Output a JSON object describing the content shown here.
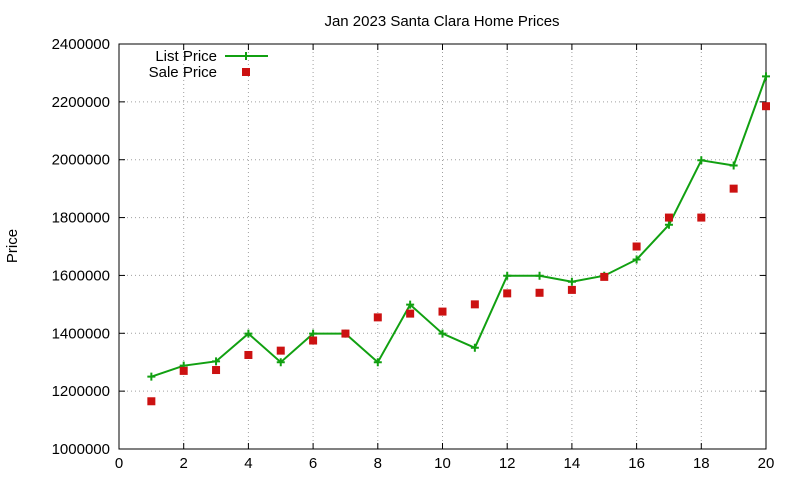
{
  "chart_data": {
    "type": "line",
    "title": "Jan 2023 Santa Clara Home Prices",
    "xlabel": "",
    "ylabel": "Price",
    "xlim": [
      0,
      20
    ],
    "ylim": [
      1000000,
      2400000
    ],
    "xticks": [
      0,
      2,
      4,
      6,
      8,
      10,
      12,
      14,
      16,
      18,
      20
    ],
    "yticks": [
      1000000,
      1200000,
      1400000,
      1600000,
      1800000,
      2000000,
      2200000,
      2400000
    ],
    "grid": true,
    "legend_position": "top-left",
    "series": [
      {
        "name": "List Price",
        "style": "linespoints",
        "color": "#11a011",
        "x": [
          1,
          2,
          3,
          4,
          5,
          6,
          7,
          8,
          9,
          10,
          11,
          12,
          13,
          14,
          15,
          16,
          17,
          18,
          19,
          20
        ],
        "values": [
          1250000,
          1288000,
          1303000,
          1399000,
          1300000,
          1399000,
          1399000,
          1300000,
          1499000,
          1399000,
          1350000,
          1599000,
          1599000,
          1578000,
          1599000,
          1655000,
          1775000,
          1998000,
          1980000,
          2288000
        ]
      },
      {
        "name": "Sale Price",
        "style": "points",
        "color": "#cc1111",
        "x": [
          1,
          2,
          3,
          4,
          5,
          6,
          7,
          8,
          9,
          10,
          11,
          12,
          13,
          14,
          15,
          16,
          17,
          18,
          19,
          20
        ],
        "values": [
          1165000,
          1270000,
          1273000,
          1325000,
          1340000,
          1375000,
          1399000,
          1455000,
          1468000,
          1475000,
          1500000,
          1538000,
          1540000,
          1550000,
          1595000,
          1700000,
          1800000,
          1800000,
          1900000,
          2185000
        ]
      }
    ]
  }
}
